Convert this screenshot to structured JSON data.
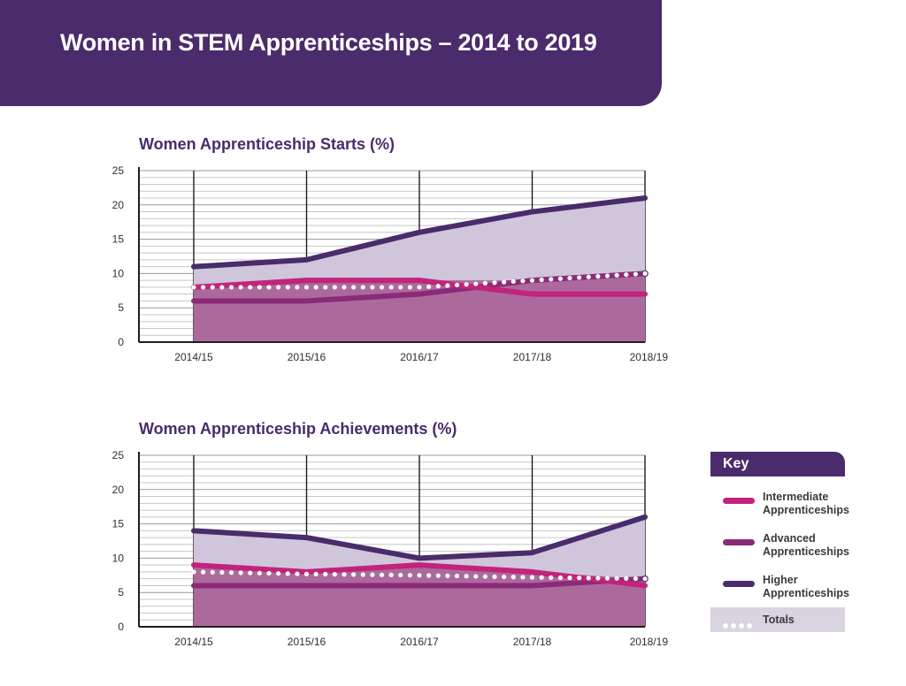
{
  "page": {
    "title": "Women in STEM Apprenticeships – 2014 to 2019"
  },
  "colors": {
    "banner": "#4a2b6b",
    "intermediate": "#c2237b",
    "advanced": "#8a2a78",
    "higher": "#4a2b6b",
    "area_lower": "#ac6a9c",
    "area_upper": "#cfc6db",
    "totals": "#ffffff",
    "key_totals_bg": "#d9d3e2"
  },
  "chart_data": [
    {
      "type": "area",
      "title": "Women Apprenticeship Starts (%)",
      "xlabel": "",
      "ylabel": "",
      "categories": [
        "2014/15",
        "2015/16",
        "2016/17",
        "2017/18",
        "2018/19"
      ],
      "ylim": [
        0,
        25
      ],
      "yticks": [
        0,
        5,
        10,
        15,
        20,
        25
      ],
      "grid": true,
      "series": [
        {
          "name": "Intermediate Apprenticeships",
          "key": "intermediate",
          "values": [
            8,
            9,
            9,
            7,
            7
          ]
        },
        {
          "name": "Advanced Apprenticeships",
          "key": "advanced",
          "values": [
            6,
            6,
            7,
            9,
            10
          ]
        },
        {
          "name": "Higher Apprenticeships",
          "key": "higher",
          "values": [
            11,
            12,
            16,
            19,
            21
          ]
        },
        {
          "name": "Totals",
          "key": "totals",
          "values": [
            8,
            8,
            8,
            9,
            10
          ]
        }
      ]
    },
    {
      "type": "area",
      "title": "Women Apprenticeship Achievements (%)",
      "xlabel": "",
      "ylabel": "",
      "categories": [
        "2014/15",
        "2015/16",
        "2016/17",
        "2017/18",
        "2018/19"
      ],
      "ylim": [
        0,
        25
      ],
      "yticks": [
        0,
        5,
        10,
        15,
        20,
        25
      ],
      "grid": true,
      "series": [
        {
          "name": "Intermediate Apprenticeships",
          "key": "intermediate",
          "values": [
            9,
            8,
            9,
            8,
            6
          ]
        },
        {
          "name": "Advanced Apprenticeships",
          "key": "advanced",
          "values": [
            6,
            6,
            6,
            6,
            7
          ]
        },
        {
          "name": "Higher Apprenticeships",
          "key": "higher",
          "values": [
            14,
            13,
            10,
            10.8,
            16
          ]
        },
        {
          "name": "Totals",
          "key": "totals",
          "values": [
            8,
            7.7,
            7.5,
            7.2,
            7
          ]
        }
      ]
    }
  ],
  "legend": {
    "title": "Key",
    "placement": "right",
    "items": [
      {
        "label": "Intermediate Apprenticeships",
        "color": "#c2237b"
      },
      {
        "label": "Advanced Apprenticeships",
        "color": "#8a2a78"
      },
      {
        "label": "Higher Apprenticeships",
        "color": "#4a2b6b"
      },
      {
        "label": "Totals",
        "color": "#ffffff"
      }
    ]
  }
}
